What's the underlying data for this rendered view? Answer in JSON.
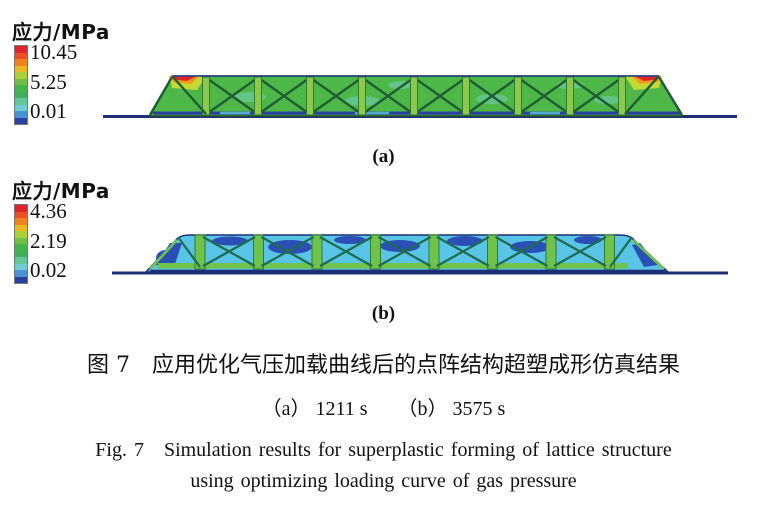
{
  "panel_a": {
    "legend_title": "应力/MPa",
    "unit": "MPa",
    "tick_max": "10.45",
    "tick_mid": "5.25",
    "tick_min": "0.01",
    "label": "(a)",
    "time": "1211 s"
  },
  "panel_b": {
    "legend_title": "应力/MPa",
    "unit": "MPa",
    "tick_max": "4.36",
    "tick_mid": "2.19",
    "tick_min": "0.02",
    "label": "(b)",
    "time": "3575 s"
  },
  "caption": {
    "zh": "图 7　应用优化气压加载曲线后的点阵结构超塑成形仿真结果",
    "sub": "（a） 1211 s　　（b） 3575 s",
    "en_line1": "Fig. 7　Simulation results for superplastic forming of lattice structure",
    "en_line2": "using optimizing loading curve of gas pressure"
  },
  "palette": {
    "colorbar": [
      "#dd2428",
      "#ea5026",
      "#f08221",
      "#e9b822",
      "#a9d035",
      "#6cc044",
      "#45b44a",
      "#3faf5c",
      "#62c89b",
      "#6fccd2",
      "#4a92d4",
      "#2b3f9e"
    ],
    "vars": {
      "navy": "#1c2f78",
      "green_a": "#4db848",
      "green_dark": "#1e5c32",
      "post_a": "#8bc84c",
      "red": "#e02428",
      "orange": "#f59a1d",
      "yellow_green": "#c3d934",
      "cyan_b": "#58c5e6",
      "blue_b": "#2b50b5",
      "green_b": "#6fc34b",
      "teal_stroke": "#1f6b50",
      "band_blue": "#2b3f9e",
      "cyan_patch": "#79d0c8"
    }
  }
}
